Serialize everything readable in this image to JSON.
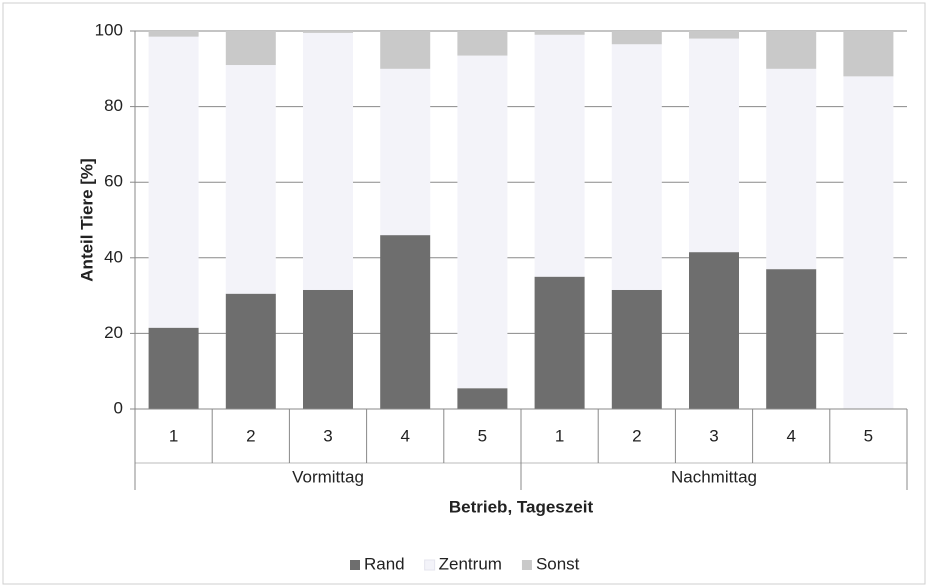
{
  "chart_data": {
    "type": "stacked_bar",
    "y_label": "Anteil Tiere [%]",
    "x_label": "Betrieb, Tageszeit",
    "categories": [
      "1",
      "2",
      "3",
      "4",
      "5",
      "1",
      "2",
      "3",
      "4",
      "5"
    ],
    "groups": [
      "Vormittag",
      "Nachmittag"
    ],
    "series": [
      {
        "name": "Rand",
        "color": "#6e6e6e",
        "values": [
          21.5,
          30.5,
          31.5,
          46,
          5.5,
          35,
          31.5,
          41.5,
          37,
          0
        ]
      },
      {
        "name": "Zentrum",
        "color": "#f3f3f9",
        "values": [
          77,
          60.5,
          68,
          44,
          88,
          64,
          65,
          56.5,
          53,
          88
        ]
      },
      {
        "name": "Sonst",
        "color": "#c9c9c9",
        "values": [
          1.5,
          9,
          0.5,
          10,
          6.5,
          1,
          3.5,
          2,
          10,
          12
        ]
      }
    ],
    "ylim": [
      0,
      100
    ],
    "yticks": [
      0,
      20,
      40,
      60,
      80,
      100
    ],
    "grid": true,
    "legend": "bottom"
  }
}
